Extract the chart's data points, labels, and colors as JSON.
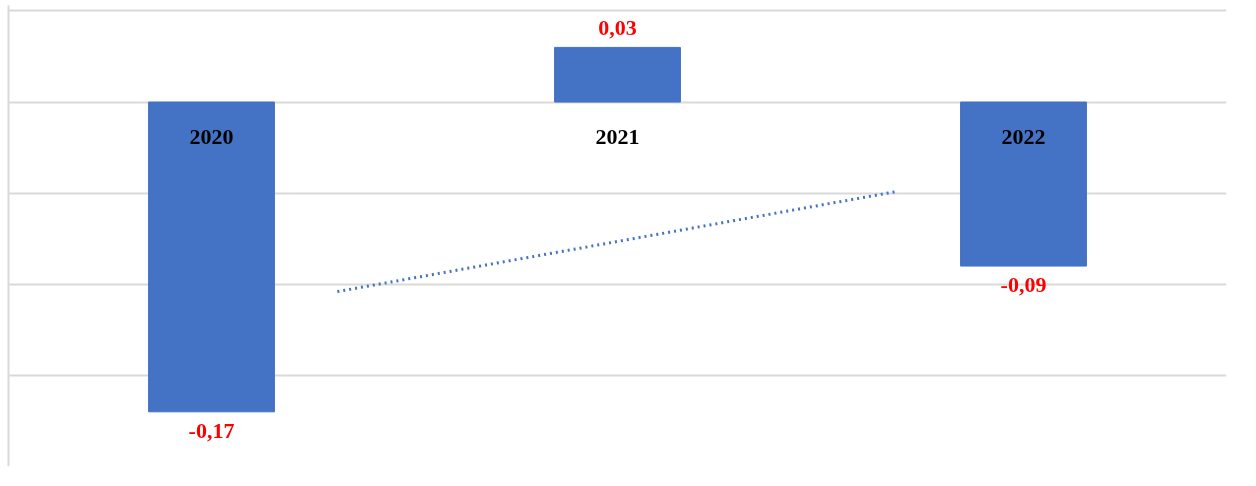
{
  "chart_data": {
    "type": "bar",
    "x": [
      2020,
      2021,
      2022
    ],
    "xlim": [
      2019.5,
      2022.5
    ],
    "xticks": [
      2020,
      2021,
      2022
    ],
    "series": [
      {
        "color": "#4472c4",
        "values": [
          -0.17,
          0.03,
          -0.09
        ],
        "value_labels": [
          "-0,17",
          "0,03",
          "-0,09"
        ]
      },
      {
        "type": "line",
        "color": "#4472c4",
        "line_style": "dotted",
        "x": [
          2020.31,
          2021.69
        ],
        "values": [
          -0.104,
          -0.049
        ]
      }
    ],
    "ylim": [
      -0.2,
      0.053
    ],
    "yticks": [
      {
        "value": 0.05,
        "label": null
      },
      {
        "value": 0,
        "label": null
      },
      {
        "value": -0.05,
        "label": null
      },
      {
        "value": -0.1,
        "label": null
      },
      {
        "value": -0.15,
        "label": null
      }
    ],
    "grid": "y",
    "tick_labels": "x"
  }
}
